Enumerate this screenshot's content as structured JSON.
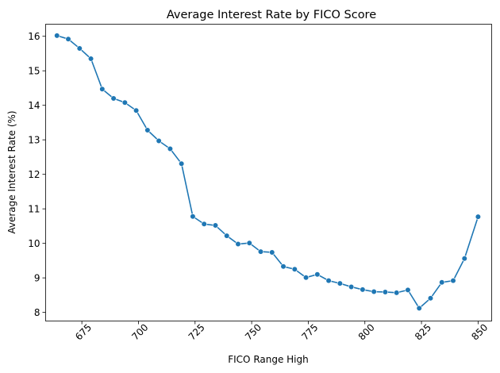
{
  "chart_data": {
    "type": "line",
    "title": "Average Interest Rate by FICO Score",
    "xlabel": "FICO Range High",
    "ylabel": "Average Interest Rate (%)",
    "xlim": [
      659,
      856
    ],
    "ylim": [
      7.75,
      16.35
    ],
    "xticks": [
      675,
      700,
      725,
      750,
      775,
      800,
      825,
      850
    ],
    "yticks": [
      8,
      9,
      10,
      11,
      12,
      13,
      14,
      15,
      16
    ],
    "xtick_rotation": 45,
    "grid": false,
    "legend": "none",
    "marker": "circle",
    "color": "#1f77b4",
    "series": [
      {
        "x": [
          664,
          669,
          674,
          679,
          684,
          689,
          694,
          699,
          704,
          709,
          714,
          719,
          724,
          729,
          734,
          739,
          744,
          749,
          754,
          759,
          764,
          769,
          774,
          779,
          784,
          789,
          794,
          799,
          804,
          809,
          814,
          819,
          824,
          829,
          834,
          839,
          844,
          850
        ],
        "y": [
          16.02,
          15.92,
          15.65,
          15.35,
          14.47,
          14.2,
          14.08,
          13.85,
          13.28,
          12.97,
          12.74,
          12.31,
          10.78,
          10.56,
          10.52,
          10.22,
          9.98,
          10.01,
          9.76,
          9.74,
          9.33,
          9.25,
          9.01,
          9.1,
          8.92,
          8.84,
          8.74,
          8.66,
          8.6,
          8.59,
          8.57,
          8.65,
          8.12,
          8.41,
          8.87,
          8.92,
          9.56,
          10.77
        ]
      }
    ]
  }
}
